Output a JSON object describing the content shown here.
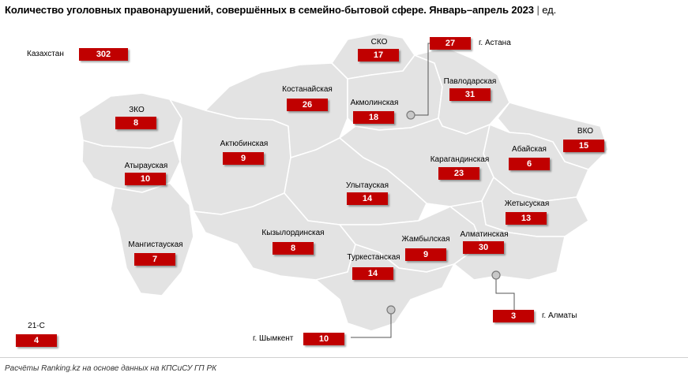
{
  "title": {
    "main": "Количество уголовных правонарушений, совершённых в семейно-бытовой сфере. Январь–апрель 2023",
    "separator": "|",
    "unit": "ед."
  },
  "colors": {
    "map_fill": "#e3e3e3",
    "border": "#ffffff",
    "value_box": "#c00000",
    "value_text": "#ffffff"
  },
  "regions": {
    "kazakhstan": {
      "name": "Казахстан",
      "value": "302"
    },
    "sko": {
      "name": "СКО",
      "value": "17"
    },
    "astana": {
      "name": "г. Астана",
      "value": "27"
    },
    "kostanay": {
      "name": "Костанайская",
      "value": "26"
    },
    "akmola": {
      "name": "Акмолинская",
      "value": "18"
    },
    "pavlodar": {
      "name": "Павлодарская",
      "value": "31"
    },
    "zko": {
      "name": "ЗКО",
      "value": "8"
    },
    "aktobe": {
      "name": "Актюбинская",
      "value": "9"
    },
    "vko": {
      "name": "ВКО",
      "value": "15"
    },
    "abay": {
      "name": "Абайская",
      "value": "6"
    },
    "karaganda": {
      "name": "Карагандинская",
      "value": "23"
    },
    "atyrau": {
      "name": "Атырауская",
      "value": "10"
    },
    "ulytau": {
      "name": "Улытауская",
      "value": "14"
    },
    "zhetysu": {
      "name": "Жетысуская",
      "value": "13"
    },
    "mangystau": {
      "name": "Мангистауская",
      "value": "7"
    },
    "kyzylorda": {
      "name": "Кызылординская",
      "value": "8"
    },
    "zhambyl": {
      "name": "Жамбылская",
      "value": "9"
    },
    "almaty_reg": {
      "name": "Алматинская",
      "value": "30"
    },
    "turkestan": {
      "name": "Туркестанская",
      "value": "14"
    },
    "almaty_city": {
      "name": "г. Алматы",
      "value": "3"
    },
    "shymkent": {
      "name": "г. Шымкент",
      "value": "10"
    },
    "c21": {
      "name": "21-С",
      "value": "4"
    }
  },
  "source": "Расчёты Ranking.kz на основе данных на КПСиСУ ГП РК"
}
